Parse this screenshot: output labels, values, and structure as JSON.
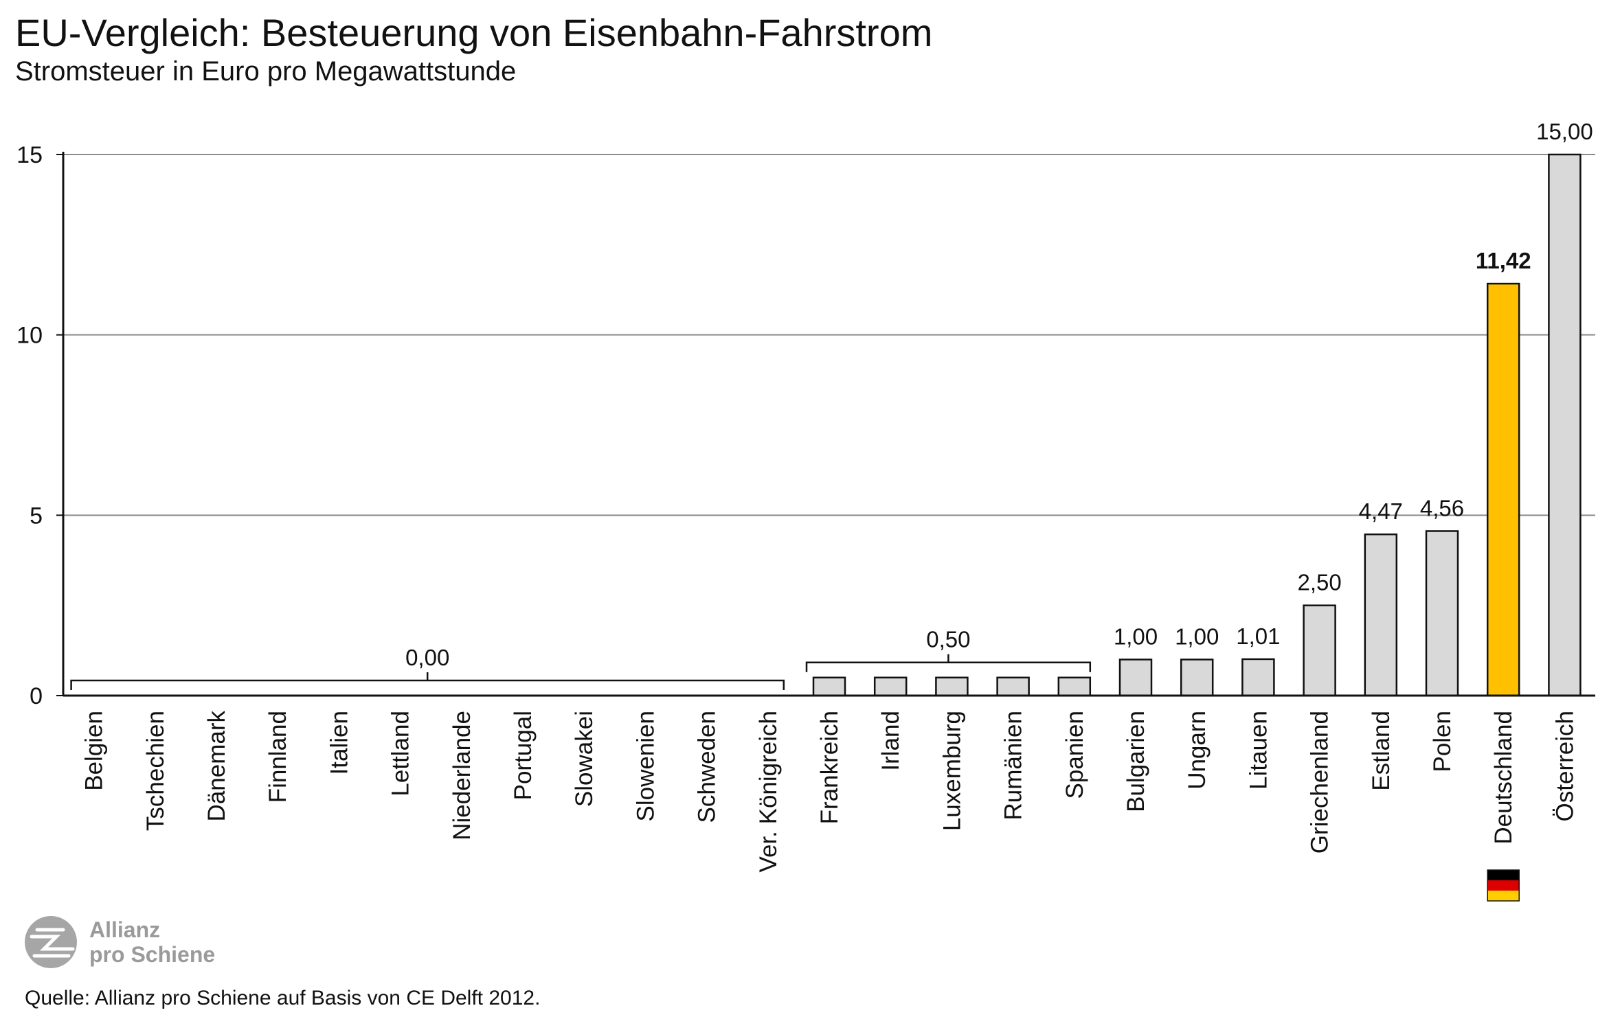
{
  "header": {
    "title": "EU-Vergleich: Besteuerung von Eisenbahn-Fahrstrom",
    "subtitle": "Stromsteuer in Euro pro Megawattstunde"
  },
  "footer": {
    "source": "Quelle: Allianz pro Schiene auf Basis von CE Delft 2012.",
    "logo_lines": [
      "Allianz",
      "pro Schiene"
    ]
  },
  "colors": {
    "bar": "#d9d9d9",
    "highlight": "#ffc000",
    "grid": "#8c8c8c",
    "axis": "#111111",
    "logo": "#9a9a9a"
  },
  "chart_data": {
    "type": "bar",
    "title": "EU-Vergleich: Besteuerung von Eisenbahn-Fahrstrom",
    "subtitle": "Stromsteuer in Euro pro Megawattstunde",
    "xlabel": "",
    "ylabel": "",
    "ylim": [
      0,
      15
    ],
    "yticks": [
      "0",
      "5",
      "10",
      "15"
    ],
    "grid": true,
    "categories": [
      "Belgien",
      "Tschechien",
      "Dänemark",
      "Finnland",
      "Italien",
      "Lettland",
      "Niederlande",
      "Portugal",
      "Slowakei",
      "Slowenien",
      "Schweden",
      "Ver. Königreich",
      "Frankreich",
      "Irland",
      "Luxemburg",
      "Rumänien",
      "Spanien",
      "Bulgarien",
      "Ungarn",
      "Litauen",
      "Griechenland",
      "Estland",
      "Polen",
      "Deutschland",
      "Österreich"
    ],
    "values": [
      0,
      0,
      0,
      0,
      0,
      0,
      0,
      0,
      0,
      0,
      0,
      0,
      0.5,
      0.5,
      0.5,
      0.5,
      0.5,
      1.0,
      1.0,
      1.01,
      2.5,
      4.47,
      4.56,
      11.42,
      15.0
    ],
    "highlight_category": "Deutschland",
    "value_labels": [
      {
        "text": "0,00",
        "from": 0,
        "to": 11
      },
      {
        "text": "0,50",
        "from": 12,
        "to": 16
      },
      {
        "text": "1,00",
        "from": 17,
        "to": 17
      },
      {
        "text": "1,00",
        "from": 18,
        "to": 18
      },
      {
        "text": "1,01",
        "from": 19,
        "to": 19
      },
      {
        "text": "2,50",
        "from": 20,
        "to": 20
      },
      {
        "text": "4,47",
        "from": 21,
        "to": 21
      },
      {
        "text": "4,56",
        "from": 22,
        "to": 22
      },
      {
        "text": "11,42",
        "from": 23,
        "to": 23,
        "bold": true
      },
      {
        "text": "15,00",
        "from": 24,
        "to": 24
      }
    ],
    "flag_category": "Deutschland",
    "flag_colors": [
      "#000000",
      "#dd0000",
      "#ffce00"
    ]
  }
}
